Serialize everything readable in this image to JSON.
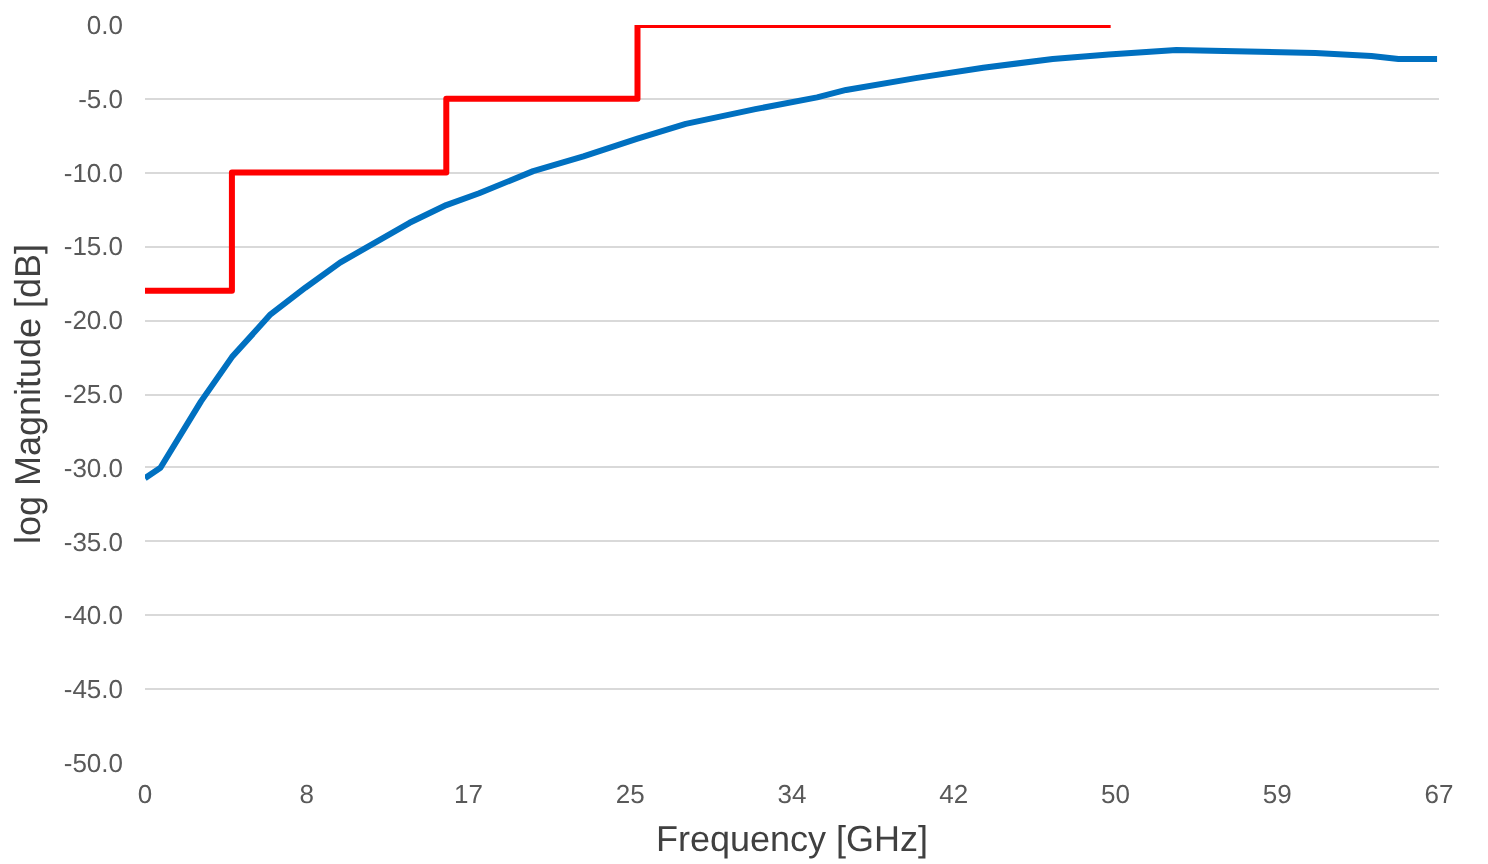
{
  "chart_data": {
    "type": "line",
    "xlabel": "Frequency [GHz]",
    "ylabel": "log Magnitude [dB]",
    "xlim": [
      0,
      67
    ],
    "ylim": [
      -50,
      0
    ],
    "xticks": [
      0,
      {
        "value": 8.375,
        "label": "8"
      },
      {
        "value": 16.75,
        "label": "17"
      },
      {
        "value": 25.125,
        "label": "25"
      },
      {
        "value": 33.5,
        "label": "34"
      },
      {
        "value": 41.875,
        "label": "42"
      },
      {
        "value": 50.25,
        "label": "50"
      },
      {
        "value": 58.625,
        "label": "59"
      },
      67
    ],
    "yticks": [
      {
        "value": -50,
        "label": "-50.0"
      },
      {
        "value": -45,
        "label": "-45.0"
      },
      {
        "value": -40,
        "label": "-40.0"
      },
      {
        "value": -35,
        "label": "-35.0"
      },
      {
        "value": -30,
        "label": "-30.0"
      },
      {
        "value": -25,
        "label": "-25.0"
      },
      {
        "value": -20,
        "label": "-20.0"
      },
      {
        "value": -15,
        "label": "-15.0"
      },
      {
        "value": -10,
        "label": "-10.0"
      },
      {
        "value": -5,
        "label": "-5.0"
      },
      {
        "value": 0,
        "label": "0.0"
      }
    ],
    "grid": "y",
    "series": [
      {
        "color": "#0070c0",
        "x": [
          0,
          0.8,
          2.9,
          4.5,
          6.5,
          8.3,
          10.1,
          13.7,
          15.6,
          17.3,
          20.1,
          22.7,
          25.5,
          28.0,
          31.6,
          34.8,
          36.3,
          39.9,
          43.4,
          47.0,
          49.9,
          53.4,
          57.1,
          60.6,
          63.5,
          64.9,
          66.9
        ],
        "values": [
          -30.7,
          -30.0,
          -25.5,
          -22.5,
          -19.6,
          -17.8,
          -16.1,
          -13.4,
          -12.2,
          -11.4,
          -9.9,
          -8.9,
          -7.7,
          -6.7,
          -5.7,
          -4.9,
          -4.4,
          -3.6,
          -2.9,
          -2.3,
          -2.0,
          -1.7,
          -1.8,
          -1.9,
          -2.1,
          -2.3,
          -2.3
        ]
      },
      {
        "type": "step",
        "color": "#ff0000",
        "x": [
          0,
          4.5,
          15.6,
          25.5,
          50.0
        ],
        "values": [
          -18,
          -10,
          -5,
          0,
          0
        ]
      }
    ]
  }
}
